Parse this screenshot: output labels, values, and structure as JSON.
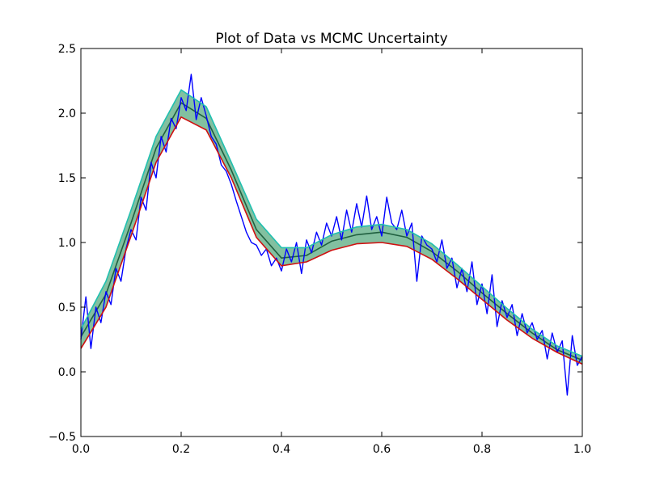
{
  "chart_data": {
    "type": "line",
    "title": "Plot of Data vs MCMC Uncertainty",
    "xlabel": "",
    "ylabel": "",
    "xlim": [
      0.0,
      1.0
    ],
    "ylim": [
      -0.5,
      2.5
    ],
    "x_ticks": [
      0.0,
      0.2,
      0.4,
      0.6,
      0.8,
      1.0
    ],
    "x_tick_labels": [
      "0.0",
      "0.2",
      "0.4",
      "0.6",
      "0.8",
      "1.0"
    ],
    "y_ticks": [
      -0.5,
      0.0,
      0.5,
      1.0,
      1.5,
      2.0,
      2.5
    ],
    "y_tick_labels": [
      "−0.5",
      "0.0",
      "0.5",
      "1.0",
      "1.5",
      "2.0",
      "2.5"
    ],
    "grid": false,
    "legend": "none",
    "band_fill_color": "#82c0a0",
    "series": [
      {
        "role": "band-upper",
        "color": "#20c0b0",
        "x": [
          0.0,
          0.05,
          0.1,
          0.15,
          0.2,
          0.25,
          0.3,
          0.35,
          0.4,
          0.45,
          0.5,
          0.55,
          0.6,
          0.65,
          0.7,
          0.75,
          0.8,
          0.85,
          0.9,
          0.95,
          1.0
        ],
        "y": [
          0.33,
          0.7,
          1.25,
          1.82,
          2.18,
          2.05,
          1.62,
          1.18,
          0.96,
          0.96,
          1.06,
          1.12,
          1.14,
          1.1,
          0.99,
          0.83,
          0.66,
          0.49,
          0.33,
          0.2,
          0.12
        ]
      },
      {
        "role": "band-lower",
        "color": "#d01010",
        "x": [
          0.0,
          0.05,
          0.1,
          0.15,
          0.2,
          0.25,
          0.3,
          0.35,
          0.4,
          0.45,
          0.5,
          0.55,
          0.6,
          0.65,
          0.7,
          0.75,
          0.8,
          0.85,
          0.9,
          0.95,
          1.0
        ],
        "y": [
          0.18,
          0.5,
          1.05,
          1.62,
          1.97,
          1.87,
          1.5,
          1.04,
          0.82,
          0.85,
          0.94,
          0.99,
          1.0,
          0.97,
          0.87,
          0.72,
          0.56,
          0.4,
          0.26,
          0.15,
          0.06
        ]
      },
      {
        "role": "median",
        "color": "#206040",
        "x": [
          0.0,
          0.05,
          0.1,
          0.15,
          0.2,
          0.25,
          0.3,
          0.35,
          0.4,
          0.45,
          0.5,
          0.55,
          0.6,
          0.65,
          0.7,
          0.75,
          0.8,
          0.85,
          0.9,
          0.95,
          1.0
        ],
        "y": [
          0.27,
          0.6,
          1.15,
          1.73,
          2.08,
          1.96,
          1.56,
          1.1,
          0.88,
          0.9,
          1.01,
          1.06,
          1.08,
          1.04,
          0.93,
          0.78,
          0.61,
          0.45,
          0.3,
          0.17,
          0.09
        ]
      },
      {
        "role": "data",
        "color": "#0000ff",
        "x": [
          0.0,
          0.01,
          0.02,
          0.03,
          0.04,
          0.05,
          0.06,
          0.07,
          0.08,
          0.09,
          0.1,
          0.11,
          0.12,
          0.13,
          0.14,
          0.15,
          0.16,
          0.17,
          0.18,
          0.19,
          0.2,
          0.21,
          0.22,
          0.23,
          0.24,
          0.25,
          0.26,
          0.27,
          0.28,
          0.29,
          0.3,
          0.31,
          0.32,
          0.33,
          0.34,
          0.35,
          0.36,
          0.37,
          0.38,
          0.39,
          0.4,
          0.41,
          0.42,
          0.43,
          0.44,
          0.45,
          0.46,
          0.47,
          0.48,
          0.49,
          0.5,
          0.51,
          0.52,
          0.53,
          0.54,
          0.55,
          0.56,
          0.57,
          0.58,
          0.59,
          0.6,
          0.61,
          0.62,
          0.63,
          0.64,
          0.65,
          0.66,
          0.67,
          0.68,
          0.69,
          0.7,
          0.71,
          0.72,
          0.73,
          0.74,
          0.75,
          0.76,
          0.77,
          0.78,
          0.79,
          0.8,
          0.81,
          0.82,
          0.83,
          0.84,
          0.85,
          0.86,
          0.87,
          0.88,
          0.89,
          0.9,
          0.91,
          0.92,
          0.93,
          0.94,
          0.95,
          0.96,
          0.97,
          0.98,
          0.99,
          1.0
        ],
        "y": [
          0.25,
          0.58,
          0.18,
          0.5,
          0.38,
          0.62,
          0.52,
          0.8,
          0.7,
          0.95,
          1.1,
          1.02,
          1.35,
          1.25,
          1.62,
          1.5,
          1.82,
          1.7,
          1.96,
          1.88,
          2.12,
          2.02,
          2.3,
          1.95,
          2.12,
          1.98,
          1.82,
          1.76,
          1.6,
          1.55,
          1.45,
          1.32,
          1.2,
          1.08,
          1.0,
          0.98,
          0.9,
          0.95,
          0.82,
          0.88,
          0.78,
          0.95,
          0.85,
          1.0,
          0.76,
          1.02,
          0.92,
          1.08,
          0.98,
          1.15,
          1.05,
          1.2,
          1.02,
          1.25,
          1.08,
          1.3,
          1.12,
          1.36,
          1.1,
          1.2,
          1.05,
          1.35,
          1.15,
          1.1,
          1.25,
          1.05,
          1.15,
          0.7,
          1.05,
          0.98,
          0.95,
          0.85,
          1.02,
          0.8,
          0.88,
          0.65,
          0.8,
          0.62,
          0.85,
          0.52,
          0.68,
          0.45,
          0.75,
          0.35,
          0.55,
          0.42,
          0.52,
          0.28,
          0.45,
          0.3,
          0.38,
          0.25,
          0.32,
          0.1,
          0.3,
          0.15,
          0.24,
          -0.18,
          0.28,
          0.05,
          0.12
        ]
      }
    ]
  }
}
